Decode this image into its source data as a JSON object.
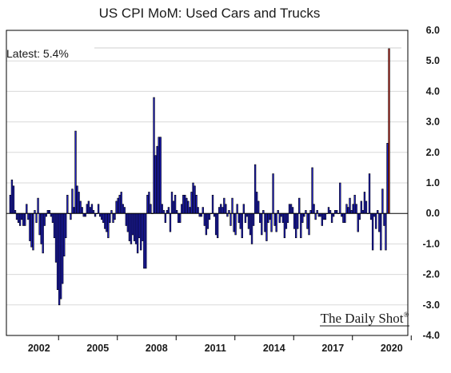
{
  "chart_data": {
    "type": "bar",
    "title": "US CPI MoM: Used Cars and Trucks",
    "annotation": "Latest:  5.4%",
    "brand": "The Daily Shot",
    "brand_mark": "®",
    "ylim": [
      -4.0,
      6.0
    ],
    "yticks": [
      "6.0",
      "5.0",
      "4.0",
      "3.0",
      "2.0",
      "1.0",
      "0.0",
      "-1.0",
      "-2.0",
      "-3.0",
      "-4.0"
    ],
    "ytick_values": [
      6,
      5,
      4,
      3,
      2,
      1,
      0,
      -1,
      -2,
      -3,
      -4
    ],
    "xticks": [
      "2002",
      "2005",
      "2008",
      "2011",
      "2014",
      "2017",
      "2020"
    ],
    "x_start": "2001-01",
    "x_end": "2020-06",
    "bar_color": "#2020cc",
    "latest_bar_color": "#c0281e",
    "gridlines": "horizontal",
    "values": [
      0.6,
      1.1,
      0.9,
      0.1,
      -0.2,
      -0.3,
      -0.4,
      -0.2,
      -0.4,
      -0.4,
      0.3,
      -0.2,
      -0.9,
      -1.1,
      -1.2,
      0.1,
      -0.3,
      0.5,
      -0.7,
      -1.0,
      -1.3,
      -0.4,
      -0.1,
      0.1,
      0.1,
      -0.1,
      -0.3,
      -0.8,
      -1.6,
      -2.5,
      -3.0,
      -2.8,
      -2.3,
      -1.4,
      -0.8,
      0.6,
      0.0,
      -0.2,
      0.8,
      0.2,
      2.7,
      0.9,
      0.7,
      0.4,
      0.2,
      -0.1,
      -0.1,
      0.3,
      0.4,
      0.2,
      0.3,
      0.1,
      -0.1,
      0.0,
      0.3,
      -0.1,
      -0.2,
      -0.3,
      -0.5,
      -0.6,
      -0.8,
      -0.3,
      0.1,
      -0.3,
      -0.2,
      0.4,
      0.5,
      0.6,
      0.7,
      0.3,
      0.2,
      -0.4,
      -0.6,
      -0.9,
      -1.0,
      -0.7,
      -0.9,
      -1.0,
      -1.3,
      -0.8,
      -1.2,
      -0.9,
      -1.8,
      -1.8,
      0.6,
      0.7,
      0.3,
      0.0,
      3.8,
      1.9,
      2.2,
      2.5,
      2.5,
      0.3,
      0.1,
      -0.3,
      0.1,
      0.2,
      -0.6,
      0.7,
      0.4,
      0.6,
      0.1,
      -0.3,
      -0.3,
      0.3,
      0.6,
      0.6,
      0.5,
      0.4,
      0.2,
      0.7,
      1.0,
      0.9,
      0.6,
      0.2,
      -0.1,
      -0.1,
      0.2,
      -0.4,
      -0.7,
      -0.5,
      -0.2,
      0.0,
      0.6,
      -0.1,
      -0.7,
      -0.8,
      0.2,
      0.3,
      0.2,
      0.5,
      0.3,
      -0.1,
      0.1,
      -0.4,
      0.5,
      -0.6,
      -0.7,
      0.3,
      -0.3,
      -0.5,
      -0.8,
      0.3,
      -0.3,
      -0.1,
      -0.5,
      -0.7,
      -1.0,
      -0.4,
      1.6,
      0.7,
      0.4,
      -0.3,
      -0.7,
      0.1,
      -0.6,
      -0.9,
      -0.3,
      -0.2,
      -0.6,
      1.3,
      -0.4,
      -0.6,
      0.1,
      -0.3,
      -0.1,
      -0.3,
      -0.8,
      -0.5,
      -0.3,
      0.3,
      0.3,
      0.2,
      -0.5,
      -0.8,
      -0.5,
      0.5,
      -0.8,
      -0.3,
      -0.1,
      0.1,
      -0.5,
      -0.7,
      0.1,
      1.5,
      0.3,
      -0.2,
      0.1,
      -0.1,
      -0.1,
      -0.4,
      -0.2,
      -0.2,
      0.0,
      0.2,
      0.1,
      -0.3,
      -0.1,
      0.1,
      0.1,
      0.0,
      1.0,
      -0.1,
      -0.3,
      -0.3,
      0.3,
      0.2,
      0.5,
      0.1,
      0.3,
      0.6,
      0.3,
      -0.6,
      -0.2,
      0.4,
      0.1,
      0.7,
      0.4,
      0.0,
      1.3,
      -0.2,
      -1.2,
      -0.1,
      -0.5,
      0.1,
      -0.6,
      -1.2,
      0.8,
      -0.4,
      -1.2,
      2.3,
      5.4
    ]
  }
}
